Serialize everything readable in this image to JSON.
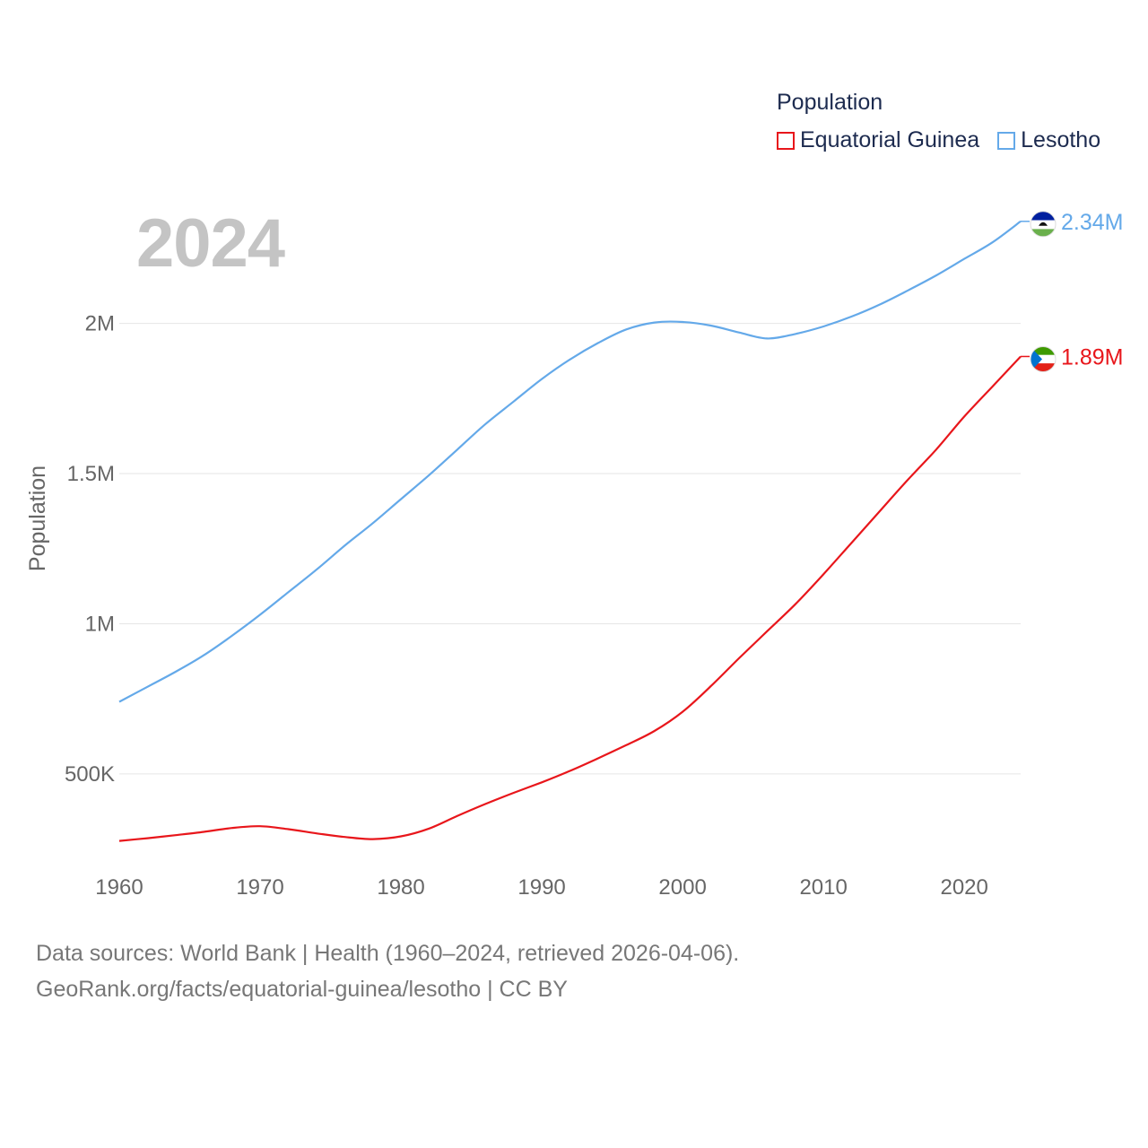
{
  "chart_data": {
    "type": "line",
    "title": "Population",
    "ylabel": "Population",
    "xlabel": "",
    "year_label": "2024",
    "x": [
      1960,
      1962,
      1964,
      1966,
      1968,
      1970,
      1972,
      1974,
      1976,
      1978,
      1980,
      1982,
      1984,
      1986,
      1988,
      1990,
      1992,
      1994,
      1996,
      1998,
      2000,
      2002,
      2004,
      2006,
      2008,
      2010,
      2012,
      2014,
      2016,
      2018,
      2020,
      2022,
      2024
    ],
    "xlim": [
      1960,
      2024
    ],
    "ylim": [
      210000,
      2420000
    ],
    "x_ticks": [
      1960,
      1970,
      1980,
      1990,
      2000,
      2010,
      2020
    ],
    "x_tick_labels": [
      "1960",
      "1970",
      "1980",
      "1990",
      "2000",
      "2010",
      "2020"
    ],
    "y_ticks": [
      500000,
      1000000,
      1500000,
      2000000
    ],
    "y_tick_labels": [
      "500K",
      "1M",
      "1.5M",
      "2M"
    ],
    "grid": true,
    "legend_position": "top-right",
    "series": [
      {
        "name": "Equatorial Guinea",
        "color": "#e8161b",
        "end_label": "1.89M",
        "flag": "equatorial-guinea-flag",
        "values": [
          277000,
          286000,
          296000,
          307000,
          320000,
          326000,
          316000,
          302000,
          290000,
          283000,
          292000,
          318000,
          360000,
          400000,
          437000,
          472000,
          510000,
          552000,
          596000,
          643000,
          707000,
          792000,
          885000,
          975000,
          1065000,
          1165000,
          1270000,
          1375000,
          1480000,
          1580000,
          1690000,
          1790000,
          1890000
        ]
      },
      {
        "name": "Lesotho",
        "color": "#64a9e9",
        "end_label": "2.34M",
        "flag": "lesotho-flag",
        "values": [
          740000,
          790000,
          840000,
          895000,
          960000,
          1030000,
          1105000,
          1180000,
          1260000,
          1335000,
          1415000,
          1495000,
          1580000,
          1665000,
          1740000,
          1815000,
          1880000,
          1935000,
          1980000,
          2003000,
          2005000,
          1993000,
          1970000,
          1950000,
          1965000,
          1990000,
          2023000,
          2063000,
          2110000,
          2160000,
          2215000,
          2270000,
          2340000
        ]
      }
    ]
  },
  "footer": {
    "line1": "Data sources: World Bank | Health (1960–2024, retrieved 2026-04-06).",
    "line2": "GeoRank.org/facts/equatorial-guinea/lesotho | CC BY"
  }
}
